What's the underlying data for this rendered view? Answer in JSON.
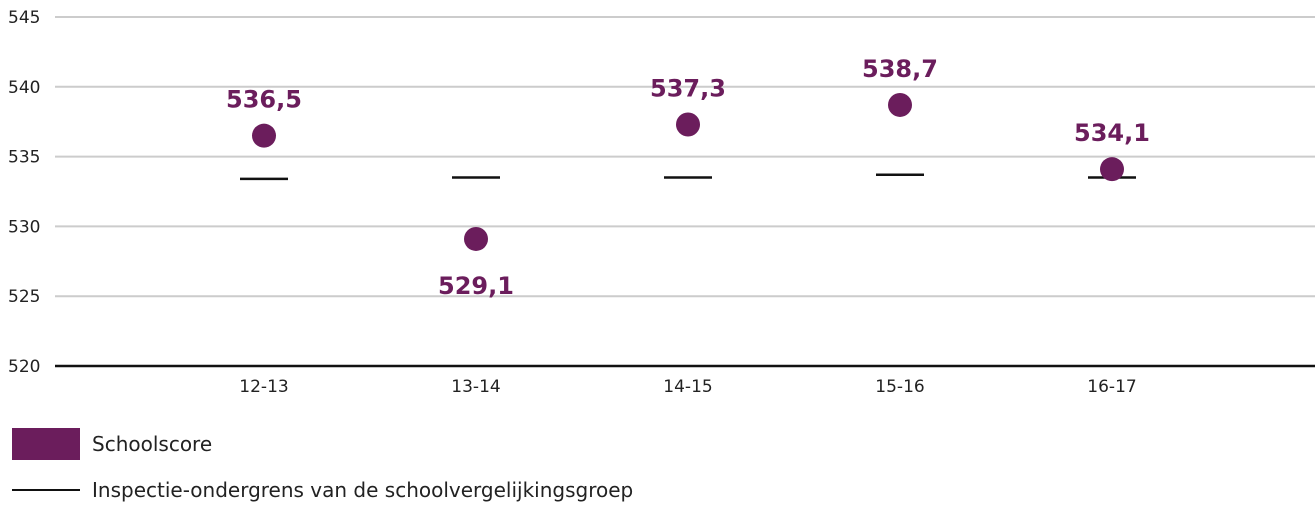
{
  "chart_data": {
    "type": "scatter",
    "categories": [
      "12-13",
      "13-14",
      "14-15",
      "15-16",
      "16-17"
    ],
    "series": [
      {
        "name": "Schoolscore",
        "values": [
          536.5,
          529.1,
          537.3,
          538.7,
          534.1
        ],
        "labels": [
          "536,5",
          "529,1",
          "537,3",
          "538,7",
          "534,1"
        ],
        "color": "#6B1D5C"
      },
      {
        "name": "Inspectie-ondergrens van de schoolvergelijkingsgroep",
        "values": [
          533.4,
          533.5,
          533.5,
          533.7,
          533.5
        ],
        "color": "#111111"
      }
    ],
    "yticks": [
      520,
      525,
      530,
      535,
      540,
      545
    ],
    "ylim": [
      520,
      545
    ],
    "grid": true,
    "legend_position": "bottom-left"
  },
  "legend": {
    "schoolscore": "Schoolscore",
    "ondergrens": "Inspectie-ondergrens van de schoolvergelijkingsgroep"
  }
}
